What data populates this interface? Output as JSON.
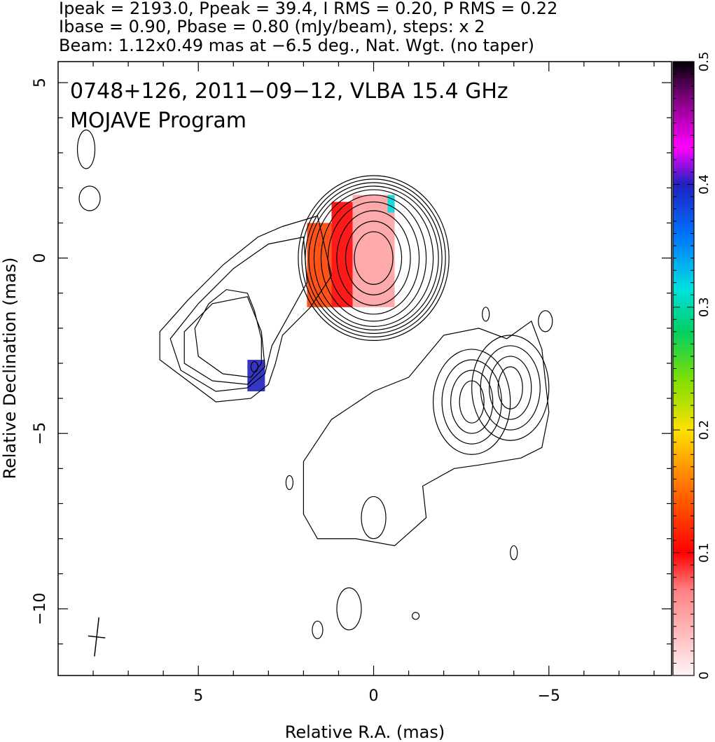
{
  "header": {
    "line1": "Ipeak = 2193.0, Ppeak = 39.4, I RMS = 0.20, P RMS = 0.22",
    "line2": "Ibase = 0.90, Pbase = 0.80 (mJy/beam), steps: x 2",
    "line3": "Beam: 1.12x0.49 mas at −6.5 deg., Nat. Wgt. (no taper)"
  },
  "chart_data": {
    "type": "heatmap",
    "source": "0748+126",
    "annotations": [
      "0748+126, 2011−09−12, VLBA 15.4 GHz",
      "MOJAVE Program"
    ],
    "xlabel": "Relative R.A. (mas)",
    "ylabel": "Relative Declination (mas)",
    "xlim": [
      9,
      -8.5
    ],
    "ylim": [
      -11.9,
      5.6
    ],
    "x_ticks": [
      {
        "v": 5,
        "label": "5"
      },
      {
        "v": 0,
        "label": "0"
      },
      {
        "v": -5,
        "label": "−5"
      }
    ],
    "y_ticks": [
      {
        "v": 5,
        "label": "5"
      },
      {
        "v": 0,
        "label": "0"
      },
      {
        "v": -5,
        "label": "−5"
      },
      {
        "v": -10,
        "label": "−10"
      }
    ],
    "colorbar": {
      "range": [
        0,
        0.5
      ],
      "ticks": [
        {
          "v": 0,
          "label": "0"
        },
        {
          "v": 0.1,
          "label": "0.1"
        },
        {
          "v": 0.2,
          "label": "0.2"
        },
        {
          "v": 0.3,
          "label": "0.3"
        },
        {
          "v": 0.4,
          "label": "0.4"
        },
        {
          "v": 0.5,
          "label": "0.5"
        }
      ]
    },
    "core_contours": {
      "center": [
        0,
        0
      ],
      "radii_mas": [
        [
          0.55,
          0.75
        ],
        [
          0.8,
          1.05
        ],
        [
          1.05,
          1.35
        ],
        [
          1.3,
          1.6
        ],
        [
          1.5,
          1.8
        ],
        [
          1.7,
          1.95
        ],
        [
          1.85,
          2.05
        ],
        [
          1.95,
          2.15
        ],
        [
          2.05,
          2.25
        ],
        [
          2.15,
          2.35
        ]
      ]
    },
    "jet_contours": [
      [
        [
          1.6,
          1.2
        ],
        [
          2.6,
          0.9
        ],
        [
          3.3,
          0.6
        ],
        [
          4.3,
          -0.2
        ],
        [
          5.3,
          -1.2
        ],
        [
          6.1,
          -2.1
        ],
        [
          6.1,
          -2.9
        ],
        [
          5.3,
          -3.5
        ],
        [
          4.5,
          -4.1
        ],
        [
          3.5,
          -4.0
        ],
        [
          3.0,
          -3.6
        ],
        [
          2.8,
          -3.0
        ],
        [
          2.6,
          -2.2
        ],
        [
          1.8,
          -1.4
        ],
        [
          1.2,
          -0.5
        ],
        [
          1.6,
          1.2
        ]
      ],
      [
        [
          2.0,
          0.6
        ],
        [
          3.0,
          0.4
        ],
        [
          4.0,
          -0.3
        ],
        [
          5.0,
          -1.3
        ],
        [
          5.8,
          -2.3
        ],
        [
          5.5,
          -3.2
        ],
        [
          4.5,
          -3.8
        ],
        [
          3.6,
          -3.7
        ],
        [
          3.1,
          -3.3
        ],
        [
          2.9,
          -2.5
        ],
        [
          2.4,
          -1.6
        ],
        [
          1.9,
          -0.7
        ],
        [
          2.0,
          0.6
        ]
      ],
      [
        [
          3.6,
          -1.1
        ],
        [
          4.6,
          -1.3
        ],
        [
          5.4,
          -2.1
        ],
        [
          5.4,
          -3.0
        ],
        [
          4.6,
          -3.5
        ],
        [
          3.6,
          -3.6
        ],
        [
          3.1,
          -3.1
        ],
        [
          3.2,
          -2.1
        ],
        [
          3.6,
          -1.1
        ]
      ],
      [
        [
          3.6,
          -1.0
        ],
        [
          4.2,
          -0.9
        ],
        [
          4.7,
          -1.3
        ],
        [
          5.1,
          -2.0
        ],
        [
          5.0,
          -2.8
        ],
        [
          4.3,
          -3.3
        ],
        [
          3.5,
          -3.4
        ],
        [
          3.2,
          -3.0
        ],
        [
          3.2,
          -2.3
        ],
        [
          3.4,
          -1.5
        ],
        [
          3.6,
          -1.0
        ]
      ]
    ],
    "extended_contour": [
      [
        2.0,
        -5.8
      ],
      [
        1.2,
        -4.6
      ],
      [
        0.0,
        -3.8
      ],
      [
        -1.0,
        -3.4
      ],
      [
        -2.0,
        -2.2
      ],
      [
        -3.0,
        -2.0
      ],
      [
        -3.8,
        -2.3
      ],
      [
        -4.5,
        -1.8
      ],
      [
        -4.8,
        -2.6
      ],
      [
        -5.0,
        -4.4
      ],
      [
        -4.8,
        -5.4
      ],
      [
        -4.2,
        -5.7
      ],
      [
        -3.0,
        -5.9
      ],
      [
        -2.3,
        -6.0
      ],
      [
        -1.4,
        -6.5
      ],
      [
        -1.5,
        -7.4
      ],
      [
        -0.6,
        -8.2
      ],
      [
        0.5,
        -8.0
      ],
      [
        1.6,
        -8.0
      ],
      [
        2.0,
        -7.3
      ],
      [
        2.0,
        -5.8
      ]
    ],
    "knot_contours": {
      "centers": [
        [
          -2.8,
          -4.1
        ],
        [
          -3.9,
          -3.7
        ]
      ],
      "radii_mas": [
        [
          0.35,
          0.6
        ],
        [
          0.6,
          0.9
        ],
        [
          0.85,
          1.2
        ],
        [
          1.1,
          1.5
        ]
      ]
    },
    "small_contours": [
      [
        [
          8.2,
          3.1
        ],
        0.25,
        0.55
      ],
      [
        [
          8.1,
          1.7
        ],
        0.3,
        0.35
      ],
      [
        [
          3.4,
          -3.1
        ],
        0.1,
        0.15
      ],
      [
        [
          2.4,
          -6.4
        ],
        0.1,
        0.2
      ],
      [
        [
          1.6,
          -10.6
        ],
        0.15,
        0.25
      ],
      [
        [
          0.7,
          -10.0
        ],
        0.35,
        0.6
      ],
      [
        [
          0.0,
          -7.4
        ],
        0.35,
        0.6
      ],
      [
        [
          -1.2,
          -10.2
        ],
        0.1,
        0.1
      ],
      [
        [
          -3.2,
          -1.6
        ],
        0.1,
        0.2
      ],
      [
        [
          -4.9,
          -1.8
        ],
        0.2,
        0.3
      ],
      [
        [
          -4.0,
          -8.4
        ],
        0.1,
        0.2
      ]
    ],
    "fractional_polarization_patches": [
      {
        "x": [
          -0.6,
          0.6
        ],
        "y": [
          -1.4,
          1.8
        ],
        "value": 0.05
      },
      {
        "x": [
          0.6,
          1.2
        ],
        "y": [
          -1.4,
          1.6
        ],
        "value": 0.1
      },
      {
        "x": [
          1.2,
          1.9
        ],
        "y": [
          -1.4,
          1.0
        ],
        "value": 0.13
      },
      {
        "x": [
          3.1,
          3.6
        ],
        "y": [
          -3.8,
          -2.9
        ],
        "value": 0.4
      },
      {
        "x": [
          -0.6,
          -0.4
        ],
        "y": [
          1.3,
          1.8
        ],
        "value": 0.32
      }
    ],
    "beam": {
      "center": [
        7.9,
        -10.8
      ],
      "major_mas": 1.12,
      "minor_mas": 0.49,
      "pa_deg": -6.5
    }
  }
}
